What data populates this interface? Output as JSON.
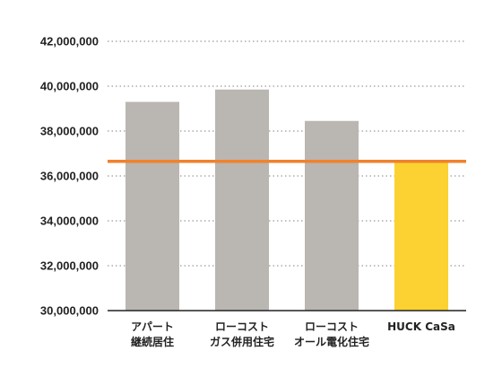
{
  "chart_data": {
    "type": "bar",
    "title": "",
    "xlabel": "",
    "ylabel": "",
    "ylim": [
      30000000,
      42000000
    ],
    "yticks": [
      30000000,
      32000000,
      34000000,
      36000000,
      38000000,
      40000000,
      42000000
    ],
    "ytick_labels": [
      "30,000,000",
      "32,000,000",
      "34,000,000",
      "36,000,000",
      "38,000,000",
      "40,000,000",
      "42,000,000"
    ],
    "grid": "horizontal-dotted",
    "categories": [
      {
        "lines": [
          "アパート",
          "継続居住"
        ]
      },
      {
        "lines": [
          "ローコスト",
          "ガス併用住宅"
        ]
      },
      {
        "lines": [
          "ローコスト",
          "オール電化住宅"
        ]
      },
      {
        "lines": [
          "HUCK CaSa"
        ]
      }
    ],
    "values": [
      39300000,
      39850000,
      38450000,
      36650000
    ],
    "bar_colors": [
      "#bab6b2",
      "#bab6b2",
      "#bab6b2",
      "#fcd132"
    ],
    "reference_line": {
      "value": 36650000,
      "color": "#f0822d"
    },
    "axis_color": "#222222",
    "grid_color": "#9a9a9a"
  }
}
